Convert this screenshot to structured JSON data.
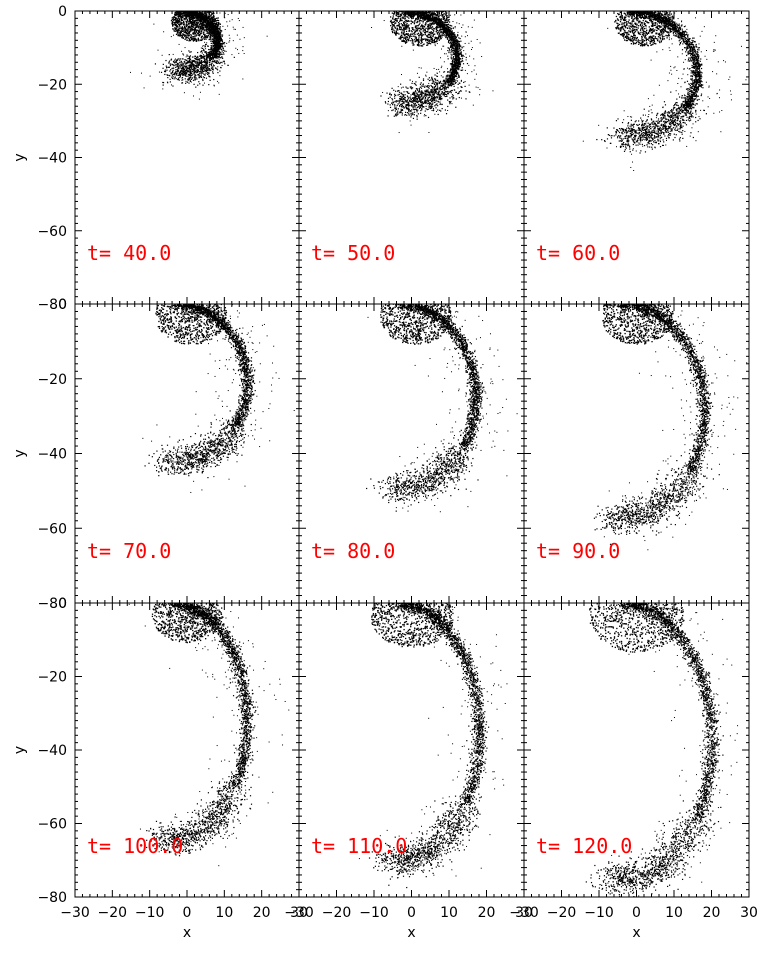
{
  "chart_data": {
    "type": "scatter",
    "layout": "3x3 small multiples, shared axes",
    "xlabel": "x",
    "ylabel": "y",
    "xlim": [
      -30,
      30
    ],
    "ylim": [
      -80,
      0
    ],
    "xticks": [
      -30,
      -20,
      -10,
      0,
      10,
      20,
      30
    ],
    "yticks": [
      0,
      -20,
      -40,
      -60,
      -80
    ],
    "grid": false,
    "label_color": "#ff0000",
    "point_color": "#000000",
    "panels": [
      {
        "label": "t= 40.0",
        "t": 40,
        "arc": {
          "cx": -2,
          "cy": 0,
          "rx": 10,
          "ry": 16,
          "core_r": 4
        }
      },
      {
        "label": "t= 50.0",
        "t": 50,
        "arc": {
          "cx": -2,
          "cy": 0,
          "rx": 14,
          "ry": 25,
          "core_r": 5
        }
      },
      {
        "label": "t= 60.0",
        "t": 60,
        "arc": {
          "cx": -2,
          "cy": 0,
          "rx": 18,
          "ry": 34,
          "core_r": 5
        }
      },
      {
        "label": "t= 70.0",
        "t": 70,
        "arc": {
          "cx": -3,
          "cy": 0,
          "rx": 19,
          "ry": 42,
          "core_r": 6
        }
      },
      {
        "label": "t= 80.0",
        "t": 80,
        "arc": {
          "cx": -3,
          "cy": 0,
          "rx": 20,
          "ry": 49,
          "core_r": 6
        }
      },
      {
        "label": "t= 90.0",
        "t": 90,
        "arc": {
          "cx": -4,
          "cy": 0,
          "rx": 22,
          "ry": 57,
          "core_r": 6
        }
      },
      {
        "label": "t= 100.0",
        "t": 100,
        "arc": {
          "cx": -4,
          "cy": 0,
          "rx": 20,
          "ry": 64,
          "core_r": 6
        }
      },
      {
        "label": "t= 110.0",
        "t": 110,
        "arc": {
          "cx": -4,
          "cy": 0,
          "rx": 22,
          "ry": 70,
          "core_r": 7
        }
      },
      {
        "label": "t= 120.0",
        "t": 120,
        "arc": {
          "cx": -4,
          "cy": 0,
          "rx": 24,
          "ry": 75,
          "core_r": 8
        }
      }
    ]
  }
}
